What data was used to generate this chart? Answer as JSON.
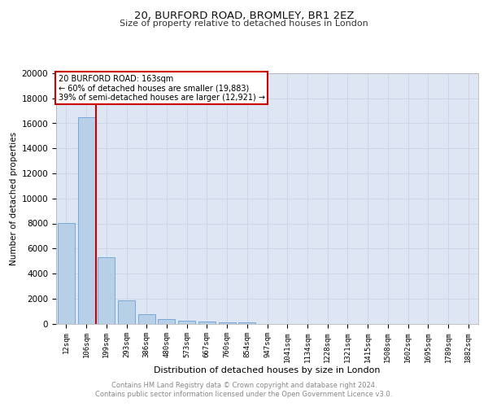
{
  "title1": "20, BURFORD ROAD, BROMLEY, BR1 2EZ",
  "title2": "Size of property relative to detached houses in London",
  "xlabel": "Distribution of detached houses by size in London",
  "ylabel": "Number of detached properties",
  "categories": [
    "12sqm",
    "106sqm",
    "199sqm",
    "293sqm",
    "386sqm",
    "480sqm",
    "573sqm",
    "667sqm",
    "760sqm",
    "854sqm",
    "947sqm",
    "1041sqm",
    "1134sqm",
    "1228sqm",
    "1321sqm",
    "1415sqm",
    "1508sqm",
    "1602sqm",
    "1695sqm",
    "1789sqm",
    "1882sqm"
  ],
  "values": [
    8050,
    16500,
    5300,
    1850,
    750,
    380,
    240,
    160,
    110,
    80,
    0,
    0,
    0,
    0,
    0,
    0,
    0,
    0,
    0,
    0,
    0
  ],
  "bar_color": "#b8cfe8",
  "bar_edge_color": "#6a9fd8",
  "vline_x": 1.5,
  "vline_color": "#cc0000",
  "annotation_lines": [
    "20 BURFORD ROAD: 163sqm",
    "← 60% of detached houses are smaller (19,883)",
    "39% of semi-detached houses are larger (12,921) →"
  ],
  "annotation_box_color": "#ffffff",
  "annotation_box_edge": "#cc0000",
  "ylim": [
    0,
    20000
  ],
  "yticks": [
    0,
    2000,
    4000,
    6000,
    8000,
    10000,
    12000,
    14000,
    16000,
    18000,
    20000
  ],
  "grid_color": "#c8d4e8",
  "background_color": "#dde6f2",
  "footer_line1": "Contains HM Land Registry data © Crown copyright and database right 2024.",
  "footer_line2": "Contains public sector information licensed under the Open Government Licence v3.0."
}
